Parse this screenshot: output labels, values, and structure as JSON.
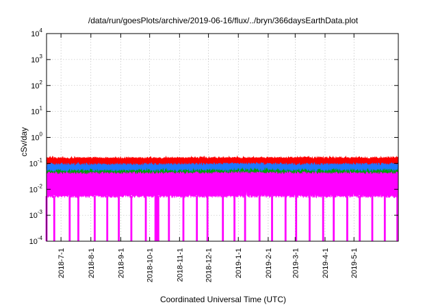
{
  "chart_data": {
    "type": "line",
    "title": "/data/run/goesPlots/archive/2019-06-16/flux/../bryn/366daysEarthData.plot",
    "xlabel": "Coordinated Universal Time (UTC)",
    "ylabel": "cSv/day",
    "xlim": [
      "2018-06-16",
      "2019-06-16"
    ],
    "ylim": [
      0.0001,
      10000
    ],
    "yscale": "log",
    "grid": true,
    "legend": "none",
    "x_ticks": [
      "2018-7-1",
      "2018-8-1",
      "2018-9-1",
      "2018-10-1",
      "2018-11-1",
      "2018-12-1",
      "2019-1-1",
      "2019-2-1",
      "2019-3-1",
      "2019-4-1",
      "2019-5-1"
    ],
    "y_ticks": [
      {
        "value": 0.0001,
        "base": "10",
        "exp": "-4"
      },
      {
        "value": 0.001,
        "base": "10",
        "exp": "-3"
      },
      {
        "value": 0.01,
        "base": "10",
        "exp": "-2"
      },
      {
        "value": 0.1,
        "base": "10",
        "exp": "-1"
      },
      {
        "value": 1,
        "base": "10",
        "exp": "0"
      },
      {
        "value": 10,
        "base": "10",
        "exp": "1"
      },
      {
        "value": 100,
        "base": "10",
        "exp": "2"
      },
      {
        "value": 1000,
        "base": "10",
        "exp": "3"
      },
      {
        "value": 10000,
        "base": "10",
        "exp": "4"
      }
    ],
    "series": [
      {
        "color": "#ff0000",
        "band_low": 0.1,
        "band_high": 0.14,
        "trend": [
          {
            "x": "2018-06-16",
            "y": 0.12
          },
          {
            "x": "2018-09-01",
            "y": 0.12
          },
          {
            "x": "2018-12-01",
            "y": 0.125
          },
          {
            "x": "2019-01-01",
            "y": 0.13
          },
          {
            "x": "2019-03-01",
            "y": 0.125
          },
          {
            "x": "2019-06-16",
            "y": 0.125
          }
        ]
      },
      {
        "color": "#1e78ff",
        "band_low": 0.055,
        "band_high": 0.11,
        "trend": [
          {
            "x": "2018-06-16",
            "y": 0.09
          },
          {
            "x": "2018-09-01",
            "y": 0.09
          },
          {
            "x": "2018-12-01",
            "y": 0.095
          },
          {
            "x": "2019-01-01",
            "y": 0.1
          },
          {
            "x": "2019-03-01",
            "y": 0.095
          },
          {
            "x": "2019-06-16",
            "y": 0.095
          }
        ]
      },
      {
        "color": "#00a000",
        "band_low": 0.045,
        "band_high": 0.07,
        "trend": [
          {
            "x": "2018-06-16",
            "y": 0.06
          },
          {
            "x": "2018-09-01",
            "y": 0.06
          },
          {
            "x": "2018-12-01",
            "y": 0.063
          },
          {
            "x": "2019-01-01",
            "y": 0.065
          },
          {
            "x": "2019-03-01",
            "y": 0.062
          },
          {
            "x": "2019-06-16",
            "y": 0.062
          }
        ]
      },
      {
        "color": "#ff00ff",
        "band_low": 0.0055,
        "band_high": 0.065,
        "trend": [
          {
            "x": "2018-06-16",
            "y": 0.03
          },
          {
            "x": "2018-09-01",
            "y": 0.03
          },
          {
            "x": "2018-12-01",
            "y": 0.032
          },
          {
            "x": "2019-01-01",
            "y": 0.035
          },
          {
            "x": "2019-03-01",
            "y": 0.032
          },
          {
            "x": "2019-06-16",
            "y": 0.032
          }
        ]
      }
    ],
    "dropouts": [
      "2018-06-16",
      "2018-06-24",
      "2018-07-10",
      "2018-07-19",
      "2018-08-05",
      "2018-08-18",
      "2018-08-30",
      "2018-09-12",
      "2018-09-27",
      "2018-10-07",
      "2018-10-08",
      "2018-10-09",
      "2018-10-10",
      "2018-10-21",
      "2018-11-05",
      "2018-11-19",
      "2018-11-30",
      "2018-12-16",
      "2018-12-28",
      "2019-01-08",
      "2019-01-23",
      "2019-02-05",
      "2019-02-19",
      "2019-03-02",
      "2019-03-16",
      "2019-03-30",
      "2019-04-10",
      "2019-04-24",
      "2019-05-07",
      "2019-05-20",
      "2019-06-02",
      "2019-06-15"
    ]
  }
}
